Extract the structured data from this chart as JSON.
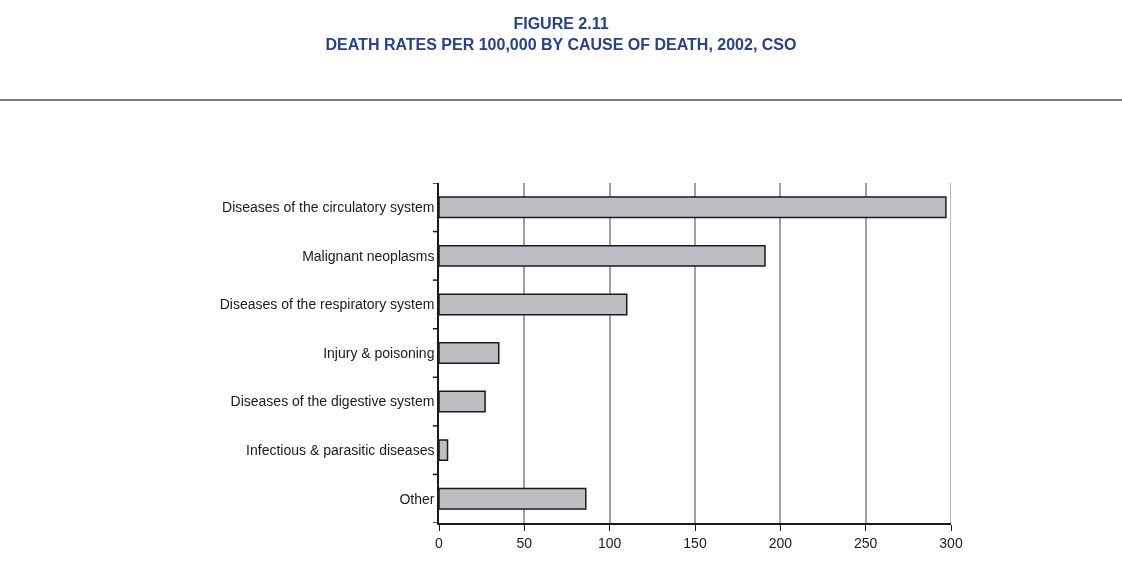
{
  "chart_data": {
    "type": "bar",
    "orientation": "horizontal",
    "title": "FIGURE 2.11\nDEATH RATES PER 100,000 BY CAUSE OF DEATH, 2002, CSO",
    "categories": [
      "Diseases of the circulatory system",
      "Malignant neoplasms",
      "Diseases of the respiratory system",
      "Injury & poisoning",
      "Diseases of the digestive system",
      "Infectious & parasitic diseases",
      "Other"
    ],
    "values": [
      297,
      191,
      110,
      35,
      27,
      5,
      86
    ],
    "color": "#bdbec2",
    "xlim": [
      0,
      300
    ],
    "xticks": [
      0,
      50,
      100,
      150,
      200,
      250,
      300
    ],
    "grid": "x",
    "legend": false
  }
}
